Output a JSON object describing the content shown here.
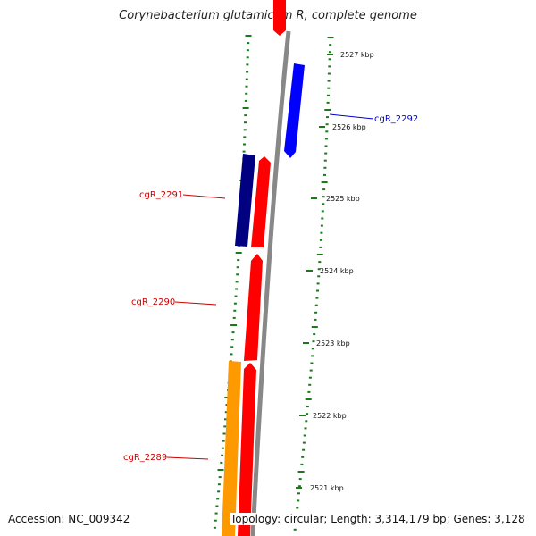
{
  "title": "Corynebacterium glutamicum R, complete genome",
  "footer": {
    "accession": "Accession: NC_009342",
    "topology": "Topology: circular; Length: 3,314,179 bp; Genes: 3,128"
  },
  "scale_labels": [
    "2527 kbp",
    "2526 kbp",
    "2525 kbp",
    "2524 kbp",
    "2523 kbp",
    "2522 kbp",
    "2521 kbp"
  ],
  "gene_labels": {
    "cgR_2292": "cgR_2292",
    "cgR_2291": "cgR_2291",
    "cgR_2290": "cgR_2290",
    "cgR_2289": "cgR_2289"
  },
  "colors": {
    "backbone": "#888888",
    "tick": "#1a7a1a",
    "forward_gene": "#ff0000",
    "reverse_gene_blue": "#0000ff",
    "reverse_gene_navy": "#000080",
    "orange_gene": "#ff9900",
    "label_red": "#cc0000",
    "label_blue": "#0000cc"
  }
}
